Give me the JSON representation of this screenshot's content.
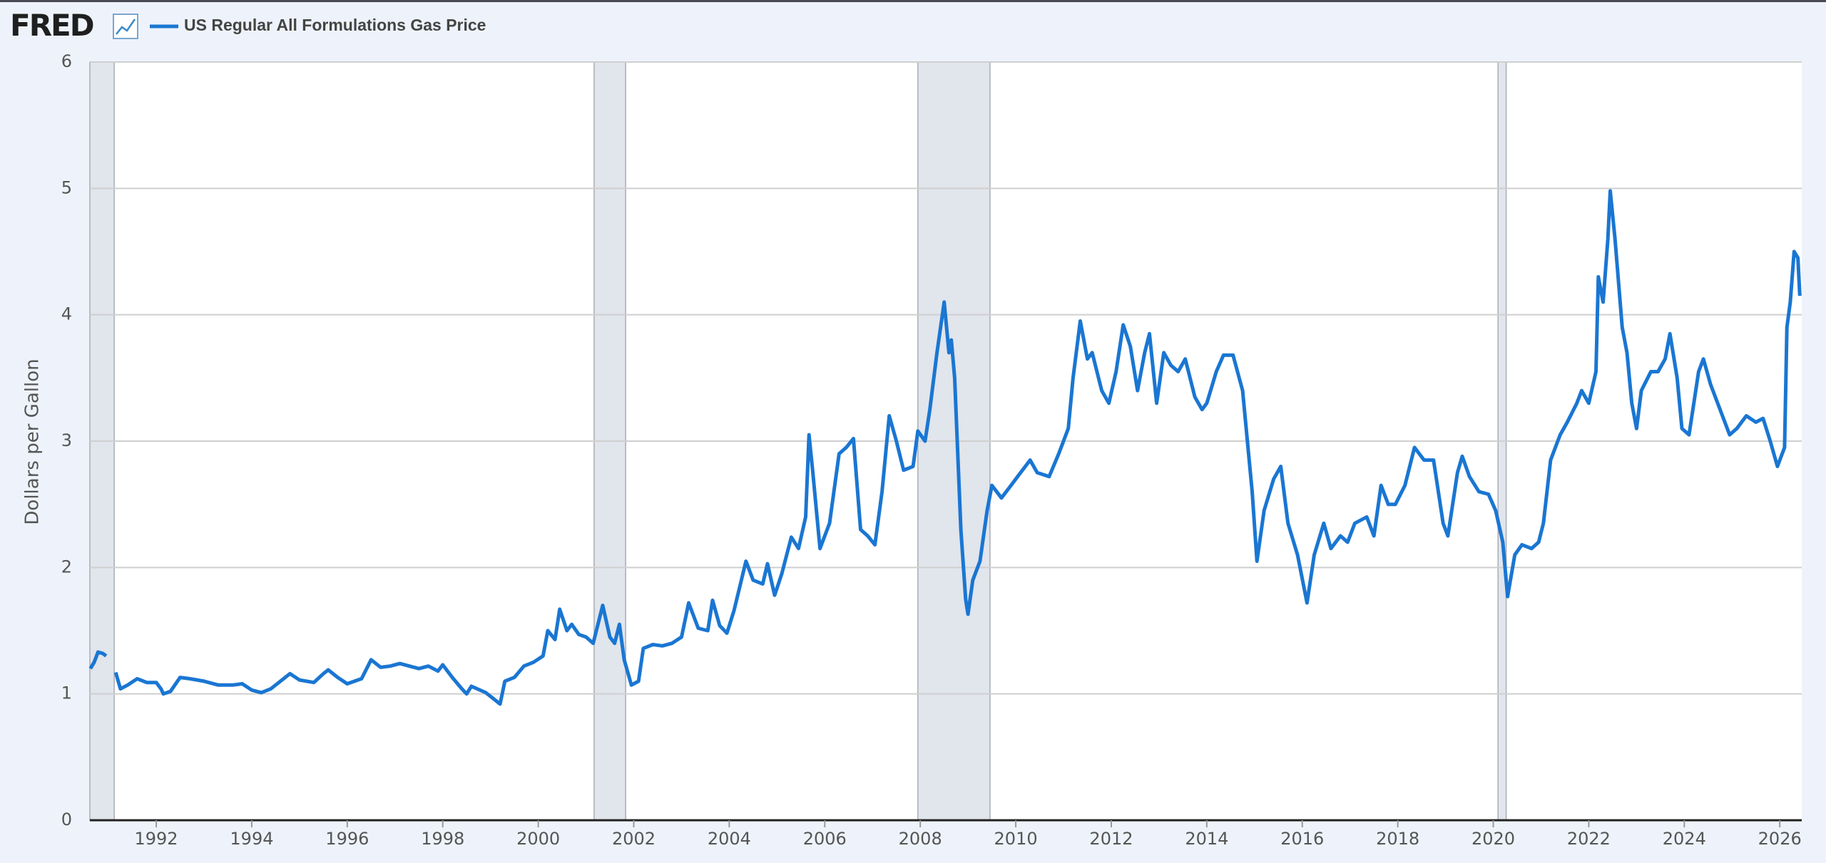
{
  "logo": "FRED",
  "chart_data": {
    "type": "line",
    "y_label": "Dollars per Gallon",
    "xlim": [
      1990.61,
      2026.46
    ],
    "xticks": [
      1992,
      1994,
      1996,
      1998,
      2000,
      2002,
      2004,
      2006,
      2008,
      2010,
      2012,
      2014,
      2016,
      2018,
      2020,
      2022,
      2024,
      2026
    ],
    "ylim": [
      0,
      6
    ],
    "yticks": [
      0,
      1,
      2,
      3,
      4,
      5,
      6
    ],
    "grid": true,
    "recessions": [
      [
        1990.61,
        1991.12
      ],
      [
        2001.17,
        2001.83
      ],
      [
        2007.95,
        2009.46
      ],
      [
        2020.1,
        2020.27
      ]
    ],
    "x": [
      1990.62,
      1990.7,
      1990.78,
      1990.88,
      1990.95,
      1991.05,
      1991.15,
      1991.25,
      1991.4,
      1991.6,
      1991.8,
      1992.0,
      1992.1,
      1992.15,
      1992.3,
      1992.5,
      1992.7,
      1993.0,
      1993.3,
      1993.6,
      1993.8,
      1994.0,
      1994.2,
      1994.4,
      1994.6,
      1994.8,
      1995.0,
      1995.3,
      1995.5,
      1995.6,
      1995.8,
      1996.0,
      1996.3,
      1996.5,
      1996.7,
      1996.9,
      1997.1,
      1997.3,
      1997.5,
      1997.7,
      1997.9,
      1998.0,
      1998.2,
      1998.4,
      1998.5,
      1998.6,
      1998.9,
      1999.1,
      1999.2,
      1999.3,
      1999.5,
      1999.7,
      1999.9,
      2000.1,
      2000.2,
      2000.35,
      2000.45,
      2000.6,
      2000.7,
      2000.85,
      2001.0,
      2001.15,
      2001.35,
      2001.5,
      2001.6,
      2001.7,
      2001.8,
      2001.95,
      2002.1,
      2002.2,
      2002.4,
      2002.6,
      2002.8,
      2003.0,
      2003.15,
      2003.35,
      2003.55,
      2003.65,
      2003.8,
      2003.95,
      2004.1,
      2004.35,
      2004.5,
      2004.7,
      2004.8,
      2004.95,
      2005.1,
      2005.3,
      2005.45,
      2005.6,
      2005.67,
      2005.75,
      2005.9,
      2006.1,
      2006.3,
      2006.45,
      2006.6,
      2006.75,
      2006.9,
      2007.05,
      2007.2,
      2007.35,
      2007.5,
      2007.65,
      2007.85,
      2007.95,
      2008.1,
      2008.2,
      2008.35,
      2008.5,
      2008.6,
      2008.65,
      2008.72,
      2008.85,
      2008.95,
      2009.0,
      2009.1,
      2009.25,
      2009.4,
      2009.5,
      2009.7,
      2009.9,
      2010.1,
      2010.3,
      2010.45,
      2010.7,
      2010.9,
      2011.1,
      2011.2,
      2011.35,
      2011.5,
      2011.6,
      2011.8,
      2011.95,
      2012.1,
      2012.25,
      2012.4,
      2012.55,
      2012.7,
      2012.8,
      2012.95,
      2013.1,
      2013.25,
      2013.4,
      2013.55,
      2013.75,
      2013.9,
      2014.0,
      2014.2,
      2014.35,
      2014.55,
      2014.75,
      2014.95,
      2015.05,
      2015.2,
      2015.4,
      2015.55,
      2015.7,
      2015.9,
      2016.1,
      2016.25,
      2016.45,
      2016.6,
      2016.8,
      2016.95,
      2017.1,
      2017.35,
      2017.5,
      2017.65,
      2017.8,
      2017.95,
      2018.15,
      2018.35,
      2018.55,
      2018.75,
      2018.95,
      2019.05,
      2019.25,
      2019.35,
      2019.5,
      2019.7,
      2019.9,
      2020.05,
      2020.2,
      2020.3,
      2020.45,
      2020.6,
      2020.8,
      2020.95,
      2021.05,
      2021.2,
      2021.4,
      2021.55,
      2021.75,
      2021.85,
      2022.0,
      2022.15,
      2022.2,
      2022.3,
      2022.4,
      2022.45,
      2022.55,
      2022.7,
      2022.8,
      2022.9,
      2023.0,
      2023.1,
      2023.3,
      2023.45,
      2023.6,
      2023.7,
      2023.85,
      2023.95,
      2024.1,
      2024.3,
      2024.4,
      2024.55,
      2024.75,
      2024.95,
      2025.1,
      2025.3,
      2025.5,
      2025.65,
      2025.8,
      2025.95,
      2026.1,
      2026.15,
      2026.22,
      2026.3,
      2026.38,
      2026.42
    ],
    "series": [
      {
        "name": "US Regular All Formulations Gas Price",
        "color": "#1a76d2",
        "values": [
          1.2,
          1.25,
          1.33,
          1.32,
          1.3,
          null,
          1.17,
          1.04,
          1.07,
          1.12,
          1.09,
          1.09,
          1.04,
          1.0,
          1.02,
          1.13,
          1.12,
          1.1,
          1.07,
          1.07,
          1.08,
          1.03,
          1.01,
          1.04,
          1.1,
          1.16,
          1.11,
          1.09,
          1.16,
          1.19,
          1.13,
          1.08,
          1.12,
          1.27,
          1.21,
          1.22,
          1.24,
          1.22,
          1.2,
          1.22,
          1.18,
          1.23,
          1.13,
          1.04,
          1.0,
          1.06,
          1.01,
          0.95,
          0.92,
          1.1,
          1.13,
          1.22,
          1.25,
          1.3,
          1.5,
          1.43,
          1.67,
          1.5,
          1.55,
          1.47,
          1.45,
          1.4,
          1.7,
          1.45,
          1.4,
          1.55,
          1.27,
          1.07,
          1.1,
          1.36,
          1.39,
          1.38,
          1.4,
          1.45,
          1.72,
          1.52,
          1.5,
          1.74,
          1.54,
          1.48,
          1.66,
          2.05,
          1.9,
          1.87,
          2.03,
          1.78,
          1.95,
          2.24,
          2.15,
          2.4,
          3.05,
          2.75,
          2.15,
          2.35,
          2.9,
          2.95,
          3.02,
          2.3,
          2.25,
          2.18,
          2.6,
          3.2,
          3.0,
          2.77,
          2.8,
          3.08,
          3.0,
          3.25,
          3.7,
          4.1,
          3.7,
          3.8,
          3.5,
          2.3,
          1.75,
          1.63,
          1.9,
          2.05,
          2.45,
          2.65,
          2.55,
          2.65,
          2.75,
          2.85,
          2.75,
          2.72,
          2.9,
          3.1,
          3.5,
          3.95,
          3.65,
          3.7,
          3.4,
          3.3,
          3.55,
          3.92,
          3.75,
          3.4,
          3.7,
          3.85,
          3.3,
          3.7,
          3.6,
          3.55,
          3.65,
          3.35,
          3.25,
          3.3,
          3.55,
          3.68,
          3.68,
          3.4,
          2.6,
          2.05,
          2.45,
          2.7,
          2.8,
          2.35,
          2.1,
          1.72,
          2.1,
          2.35,
          2.15,
          2.25,
          2.2,
          2.35,
          2.4,
          2.25,
          2.65,
          2.5,
          2.5,
          2.65,
          2.95,
          2.85,
          2.85,
          2.35,
          2.25,
          2.75,
          2.88,
          2.72,
          2.6,
          2.58,
          2.45,
          2.2,
          1.77,
          2.1,
          2.18,
          2.15,
          2.2,
          2.35,
          2.85,
          3.05,
          3.15,
          3.3,
          3.4,
          3.3,
          3.55,
          4.3,
          4.1,
          4.6,
          4.98,
          4.6,
          3.9,
          3.7,
          3.3,
          3.1,
          3.4,
          3.55,
          3.55,
          3.65,
          3.85,
          3.5,
          3.1,
          3.05,
          3.55,
          3.65,
          3.45,
          3.25,
          3.05,
          3.1,
          3.2,
          3.15,
          3.18,
          3.0,
          2.8,
          2.95,
          3.9,
          4.1,
          4.5,
          4.45,
          4.15
        ]
      }
    ]
  }
}
